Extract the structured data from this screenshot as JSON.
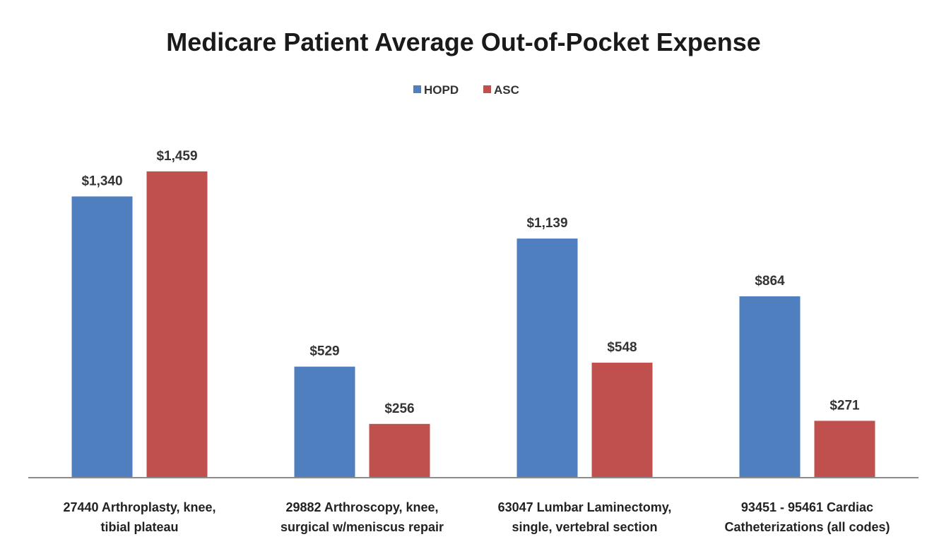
{
  "chart_data": {
    "type": "bar",
    "title": "Medicare Patient Average Out-of-Pocket Expense",
    "xlabel": "",
    "ylabel": "",
    "categories": [
      [
        "27440  Arthroplasty, knee,",
        "tibial plateau"
      ],
      [
        "29882  Arthroscopy, knee,",
        "surgical w/meniscus repair"
      ],
      [
        "63047  Lumbar Laminectomy,",
        "single,  vertebral section"
      ],
      [
        "93451 - 95461 Cardiac",
        "Catheterizations (all codes)"
      ]
    ],
    "series": [
      {
        "name": "HOPD",
        "color": "#4F7FBF",
        "values": [
          1340,
          529,
          1139,
          864
        ],
        "labels": [
          "$1,340",
          "$529",
          "$1,139",
          "$864"
        ]
      },
      {
        "name": "ASC",
        "color": "#C0504D",
        "values": [
          1459,
          256,
          548,
          271
        ],
        "labels": [
          "$1,459",
          "$256",
          "$548",
          "$271"
        ]
      }
    ],
    "ylim": [
      0,
      1500
    ],
    "grid": false,
    "legend": "top-center",
    "axis_color": "#8c8c8c"
  }
}
